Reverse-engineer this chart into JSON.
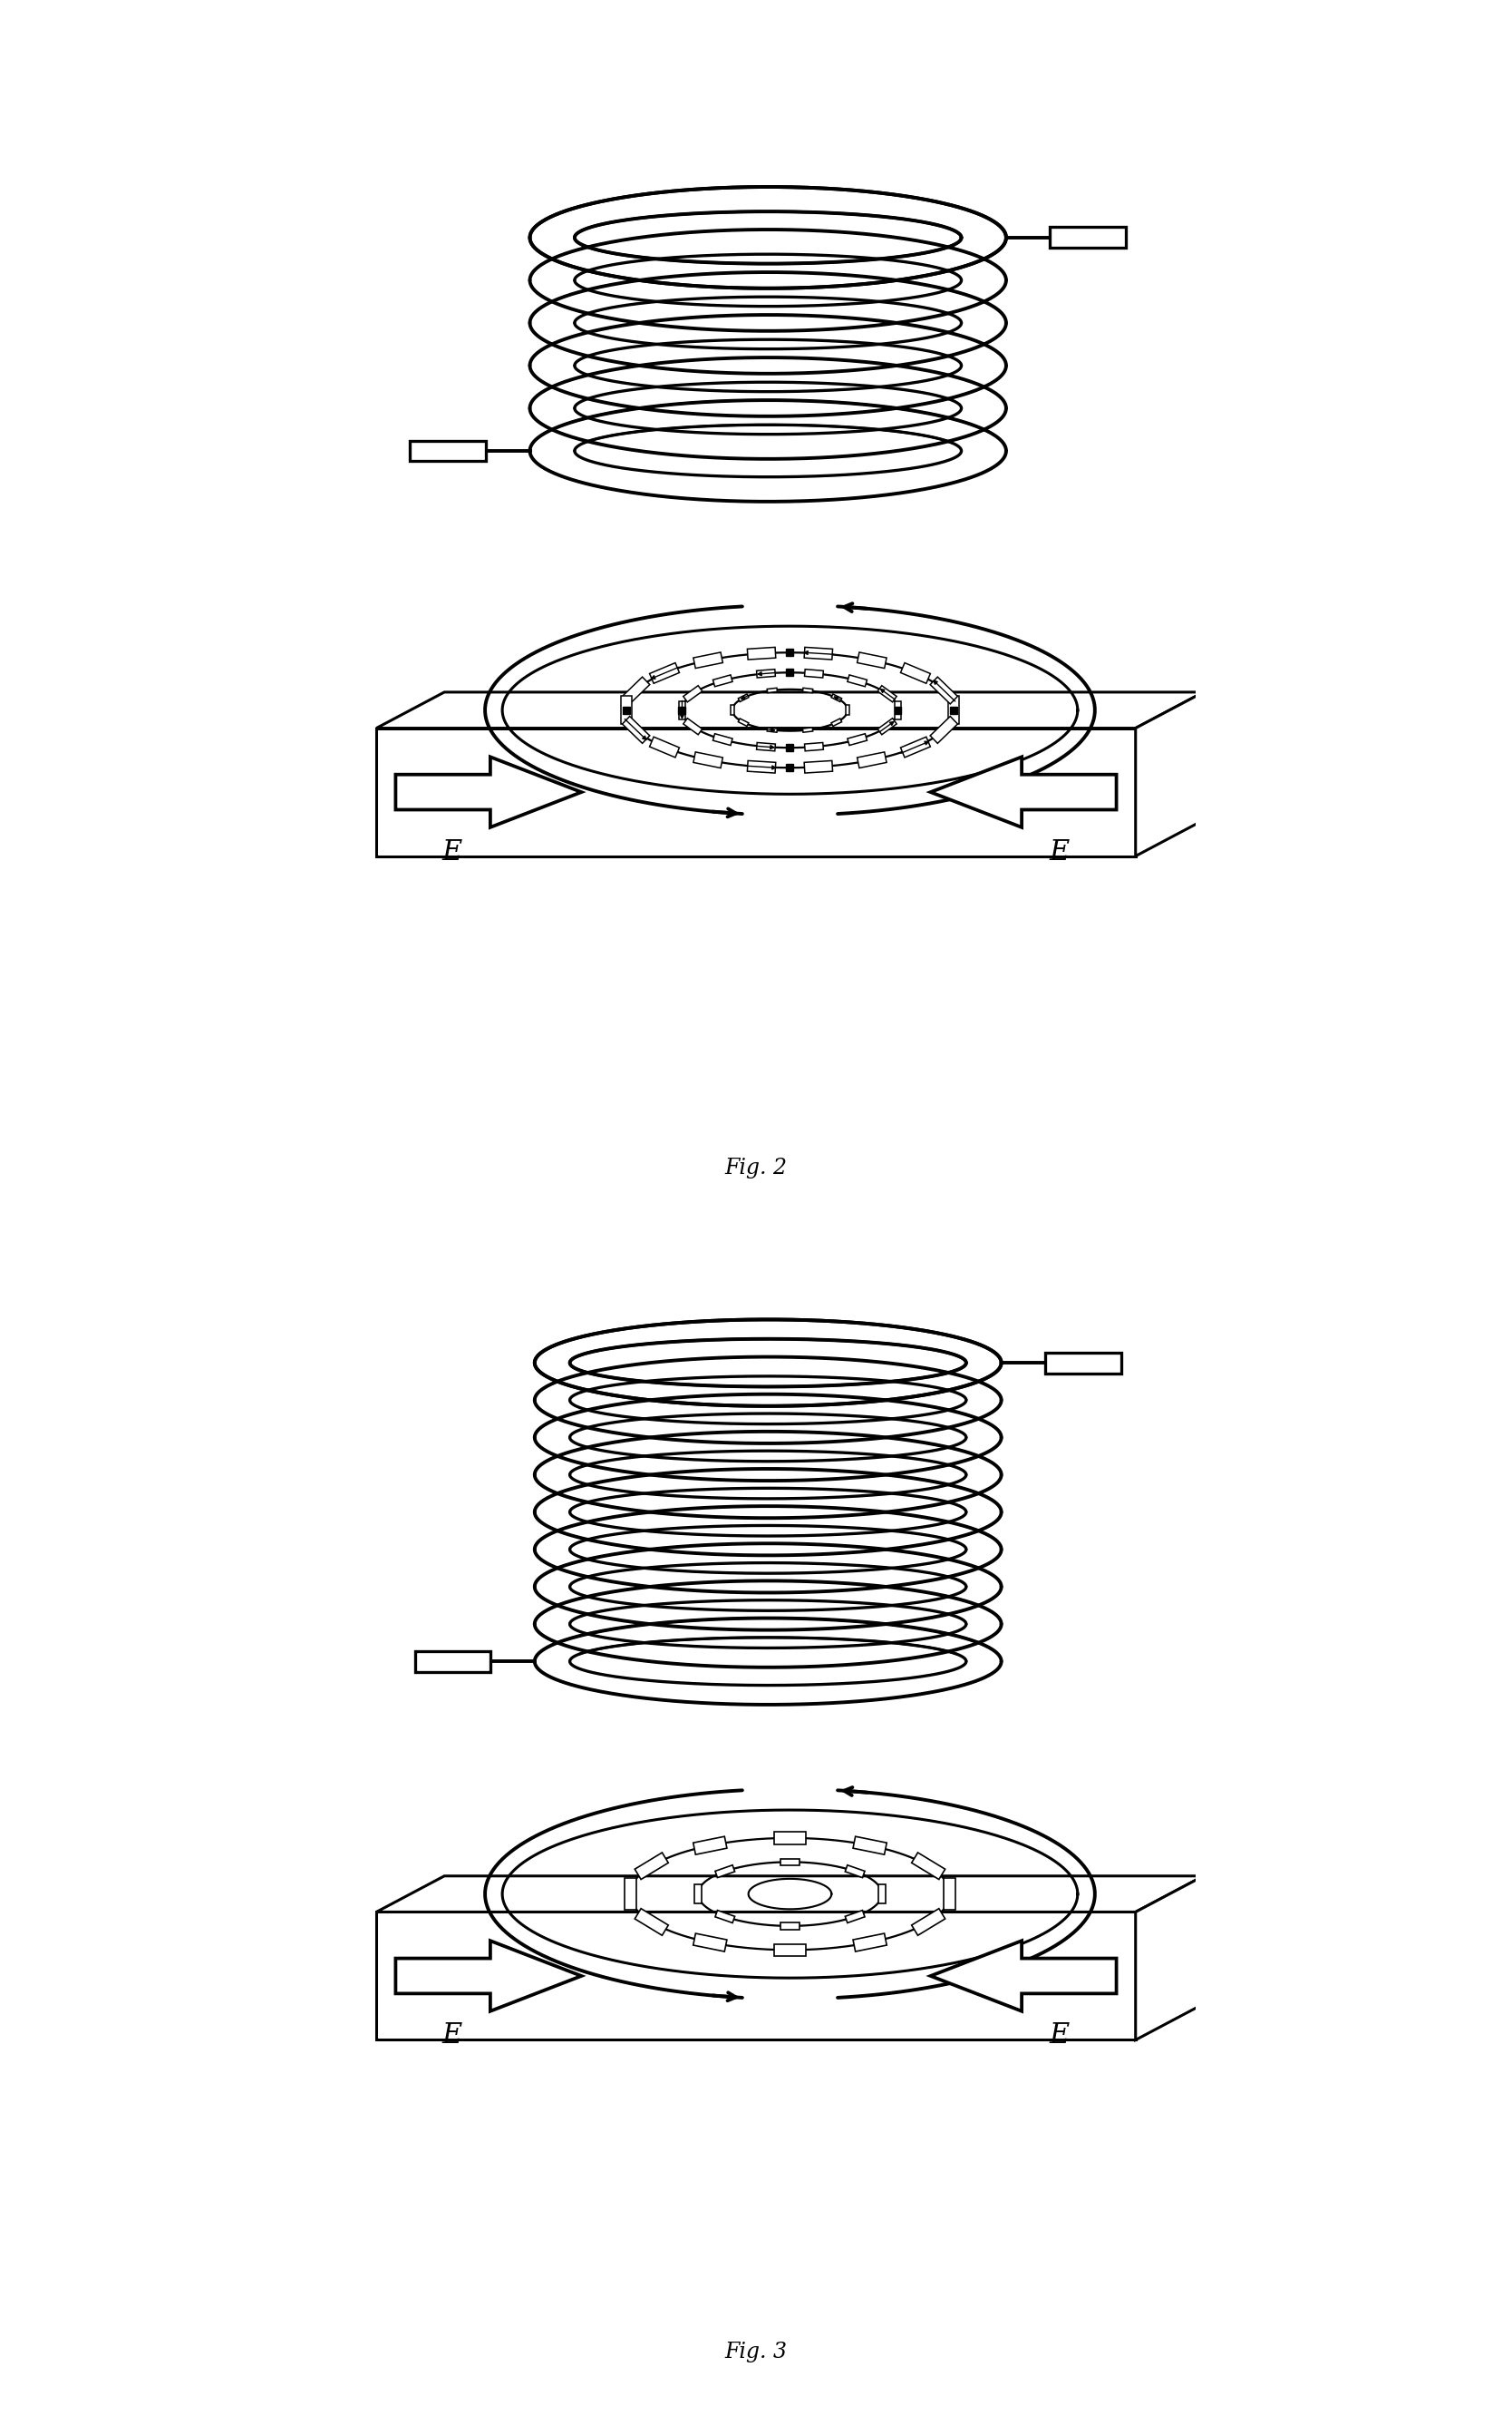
{
  "fig2_label": "Fig. 2",
  "fig3_label": "Fig. 3",
  "background_color": "#ffffff",
  "line_color": "#000000",
  "fig2_coil_turns": 6,
  "fig3_coil_turns": 9,
  "label_E": "E",
  "label_fontsize": 22,
  "coil_lw": 2.8,
  "plate_lw": 2.2,
  "eddy_lw": 1.8
}
